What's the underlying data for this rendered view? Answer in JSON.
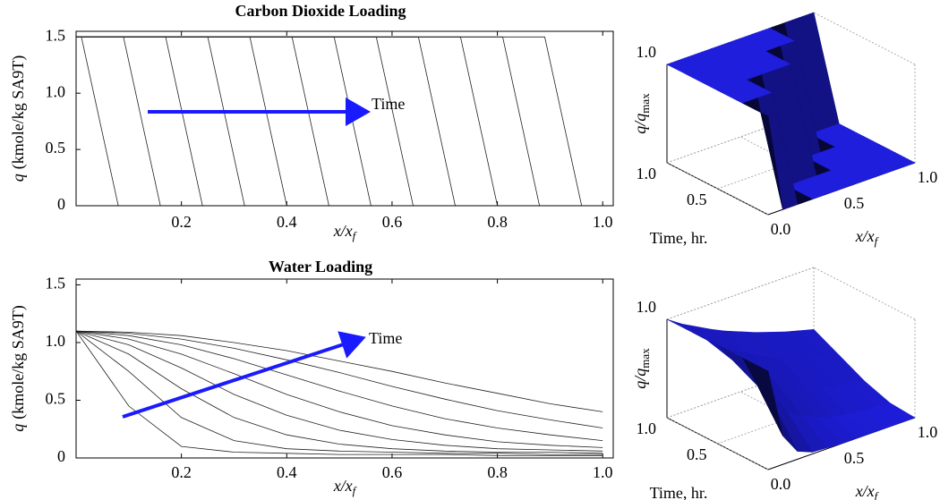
{
  "chart_data": [
    {
      "type": "line",
      "title": "Carbon Dioxide Loading",
      "y_label_symbol": "q",
      "y_label": "(kmole/kg SA9T)",
      "x_label": "x/x",
      "x_label_sub": "f",
      "annotation": "Time",
      "line_color": "#222222",
      "xlim": [
        0,
        1.02
      ],
      "ylim": [
        0,
        1.55
      ],
      "xticks": [
        0.2,
        0.4,
        0.6,
        0.8,
        {
          "value": 1,
          "label": "1.0"
        }
      ],
      "yticks": [
        0,
        0.5,
        {
          "value": 1,
          "label": "1.0"
        },
        1.5
      ],
      "series": [
        {
          "x": [
            0,
            0.01,
            0.08,
            1
          ],
          "values": [
            1.5,
            1.5,
            0,
            0
          ]
        },
        {
          "x": [
            0,
            0.09,
            0.16,
            1
          ],
          "values": [
            1.5,
            1.5,
            0,
            0
          ]
        },
        {
          "x": [
            0,
            0.17,
            0.24,
            1
          ],
          "values": [
            1.5,
            1.5,
            0,
            0
          ]
        },
        {
          "x": [
            0,
            0.25,
            0.32,
            1
          ],
          "values": [
            1.5,
            1.5,
            0,
            0
          ]
        },
        {
          "x": [
            0,
            0.33,
            0.4,
            1
          ],
          "values": [
            1.5,
            1.5,
            0,
            0
          ]
        },
        {
          "x": [
            0,
            0.41,
            0.48,
            1
          ],
          "values": [
            1.5,
            1.5,
            0,
            0
          ]
        },
        {
          "x": [
            0,
            0.49,
            0.56,
            1
          ],
          "values": [
            1.5,
            1.5,
            0,
            0
          ]
        },
        {
          "x": [
            0,
            0.57,
            0.64,
            1
          ],
          "values": [
            1.5,
            1.5,
            0,
            0
          ]
        },
        {
          "x": [
            0,
            0.65,
            0.72,
            1
          ],
          "values": [
            1.5,
            1.5,
            0,
            0
          ]
        },
        {
          "x": [
            0,
            0.73,
            0.8,
            1
          ],
          "values": [
            1.5,
            1.5,
            0,
            0
          ]
        },
        {
          "x": [
            0,
            0.81,
            0.88,
            1
          ],
          "values": [
            1.5,
            1.5,
            0,
            0
          ]
        },
        {
          "x": [
            0,
            0.89,
            0.96,
            1
          ],
          "values": [
            1.5,
            1.5,
            0,
            0
          ]
        }
      ]
    },
    {
      "type": "surface",
      "z_label": "q/q",
      "z_label_sub": "max",
      "time_label": "Time, hr.",
      "x_label": "x/x",
      "x_label_sub": "f",
      "color": "#1e1edc",
      "zticks": [
        {
          "value": 1,
          "label": "1.0"
        }
      ],
      "tticks": [
        0.5,
        {
          "value": 1,
          "label": "1.0"
        }
      ],
      "xticks": [
        {
          "value": 0,
          "label": "0.0"
        },
        0.5,
        {
          "value": 1,
          "label": "1.0"
        }
      ],
      "x": [
        0,
        0.1,
        0.2,
        0.3,
        0.4,
        0.5,
        0.6,
        0.7,
        0.8,
        0.9,
        1
      ],
      "time": [
        0,
        0.25,
        0.5,
        0.75,
        1
      ],
      "z": [
        [
          1,
          0,
          0,
          0,
          0,
          0,
          0,
          0,
          0,
          0,
          0
        ],
        [
          1,
          1,
          1,
          0,
          0,
          0,
          0,
          0,
          0,
          0,
          0
        ],
        [
          1,
          1,
          1,
          1,
          1,
          1,
          0,
          0,
          0,
          0,
          0
        ],
        [
          1,
          1,
          1,
          1,
          1,
          1,
          1,
          1,
          0,
          0,
          0
        ],
        [
          1,
          1,
          1,
          1,
          1,
          1,
          1,
          1,
          1,
          1,
          1
        ]
      ]
    },
    {
      "type": "line",
      "title": "Water Loading",
      "y_label_symbol": "q",
      "y_label": "(kmole/kg SA9T)",
      "x_label": "x/x",
      "x_label_sub": "f",
      "annotation": "Time",
      "line_color": "#222222",
      "xlim": [
        0,
        1.02
      ],
      "ylim": [
        0,
        1.55
      ],
      "xticks": [
        0.2,
        0.4,
        0.6,
        0.8,
        {
          "value": 1,
          "label": "1.0"
        }
      ],
      "yticks": [
        0,
        0.5,
        {
          "value": 1,
          "label": "1.0"
        },
        1.5
      ],
      "x": [
        0,
        0.1,
        0.2,
        0.3,
        0.4,
        0.5,
        0.6,
        0.7,
        0.8,
        0.9,
        1
      ],
      "series": [
        {
          "values": [
            1.1,
            0.45,
            0.1,
            0.05,
            0.04,
            0.03,
            0.03,
            0.03,
            0.02,
            0.02,
            0.02
          ]
        },
        {
          "values": [
            1.1,
            0.75,
            0.35,
            0.15,
            0.08,
            0.06,
            0.05,
            0.04,
            0.04,
            0.03,
            0.03
          ]
        },
        {
          "values": [
            1.1,
            0.9,
            0.6,
            0.35,
            0.2,
            0.12,
            0.08,
            0.06,
            0.05,
            0.05,
            0.04
          ]
        },
        {
          "values": [
            1.1,
            0.98,
            0.78,
            0.55,
            0.37,
            0.24,
            0.16,
            0.11,
            0.08,
            0.07,
            0.06
          ]
        },
        {
          "values": [
            1.1,
            1.03,
            0.9,
            0.73,
            0.55,
            0.4,
            0.28,
            0.2,
            0.14,
            0.11,
            0.09
          ]
        },
        {
          "values": [
            1.1,
            1.06,
            0.98,
            0.86,
            0.72,
            0.58,
            0.45,
            0.34,
            0.26,
            0.2,
            0.15
          ]
        },
        {
          "values": [
            1.1,
            1.08,
            1.03,
            0.95,
            0.85,
            0.74,
            0.62,
            0.51,
            0.41,
            0.33,
            0.26
          ]
        },
        {
          "values": [
            1.1,
            1.09,
            1.06,
            1.0,
            0.93,
            0.84,
            0.75,
            0.65,
            0.56,
            0.47,
            0.4
          ]
        }
      ]
    },
    {
      "type": "surface",
      "z_label": "q/q",
      "z_label_sub": "max",
      "time_label": "Time, hr.",
      "x_label": "x/x",
      "x_label_sub": "f",
      "color": "#1e1edc",
      "zticks": [
        {
          "value": 1,
          "label": "1.0"
        }
      ],
      "tticks": [
        0.5,
        {
          "value": 1,
          "label": "1.0"
        }
      ],
      "xticks": [
        {
          "value": 0,
          "label": "0.0"
        },
        0.5,
        {
          "value": 1,
          "label": "1.0"
        }
      ],
      "x": [
        0,
        0.1,
        0.2,
        0.3,
        0.4,
        0.5,
        0.6,
        0.7,
        0.8,
        0.9,
        1
      ],
      "time": [
        0,
        0.25,
        0.5,
        0.75,
        1
      ],
      "z": [
        [
          1,
          0.29,
          0.08,
          0.02,
          0.01,
          0,
          0,
          0,
          0,
          0,
          0
        ],
        [
          1,
          0.67,
          0.45,
          0.3,
          0.2,
          0.14,
          0.09,
          0.06,
          0.04,
          0.03,
          0.02
        ],
        [
          1,
          0.8,
          0.64,
          0.51,
          0.41,
          0.33,
          0.26,
          0.21,
          0.17,
          0.14,
          0.11
        ],
        [
          1,
          0.87,
          0.75,
          0.65,
          0.56,
          0.49,
          0.42,
          0.37,
          0.32,
          0.28,
          0.24
        ],
        [
          1,
          0.9,
          0.82,
          0.74,
          0.67,
          0.61,
          0.55,
          0.5,
          0.45,
          0.41,
          0.37
        ]
      ]
    }
  ]
}
